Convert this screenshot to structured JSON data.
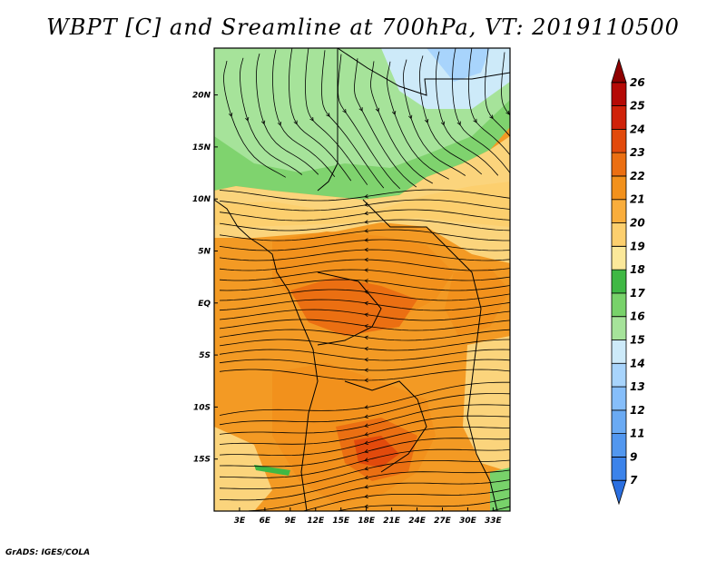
{
  "title": "WBPT [C] and Sreamline at 700hPa, VT: 2019110500",
  "credit": "GrADS: IGES/COLA",
  "map": {
    "lat_labels": [
      "20N",
      "15N",
      "10N",
      "5N",
      "EQ",
      "5S",
      "10S",
      "15S"
    ],
    "lat_values": [
      20,
      15,
      10,
      5,
      0,
      -5,
      -10,
      -15
    ],
    "lon_labels": [
      "3E",
      "6E",
      "9E",
      "12E",
      "15E",
      "18E",
      "21E",
      "24E",
      "27E",
      "30E",
      "33E"
    ],
    "lon_values": [
      3,
      6,
      9,
      12,
      15,
      18,
      21,
      24,
      27,
      30,
      33
    ],
    "lon_range": [
      0,
      35
    ],
    "lat_range": [
      -20,
      24.5
    ]
  },
  "colorbar": {
    "labels": [
      "7",
      "9",
      "11",
      "12",
      "13",
      "14",
      "15",
      "16",
      "17",
      "18",
      "19",
      "20",
      "21",
      "22",
      "23",
      "24",
      "25",
      "26"
    ],
    "colors": [
      "#2b6fe0",
      "#3c83ea",
      "#5297ef",
      "#6aaaf3",
      "#86befa",
      "#a8d4fc",
      "#cdeaf9",
      "#a6e39a",
      "#78d26a",
      "#3fb844",
      "#fbe89a",
      "#fccf6e",
      "#f9ad3c",
      "#f2911c",
      "#eb6f12",
      "#e24a0c",
      "#d0220a",
      "#b50a06",
      "#8e0000"
    ]
  }
}
